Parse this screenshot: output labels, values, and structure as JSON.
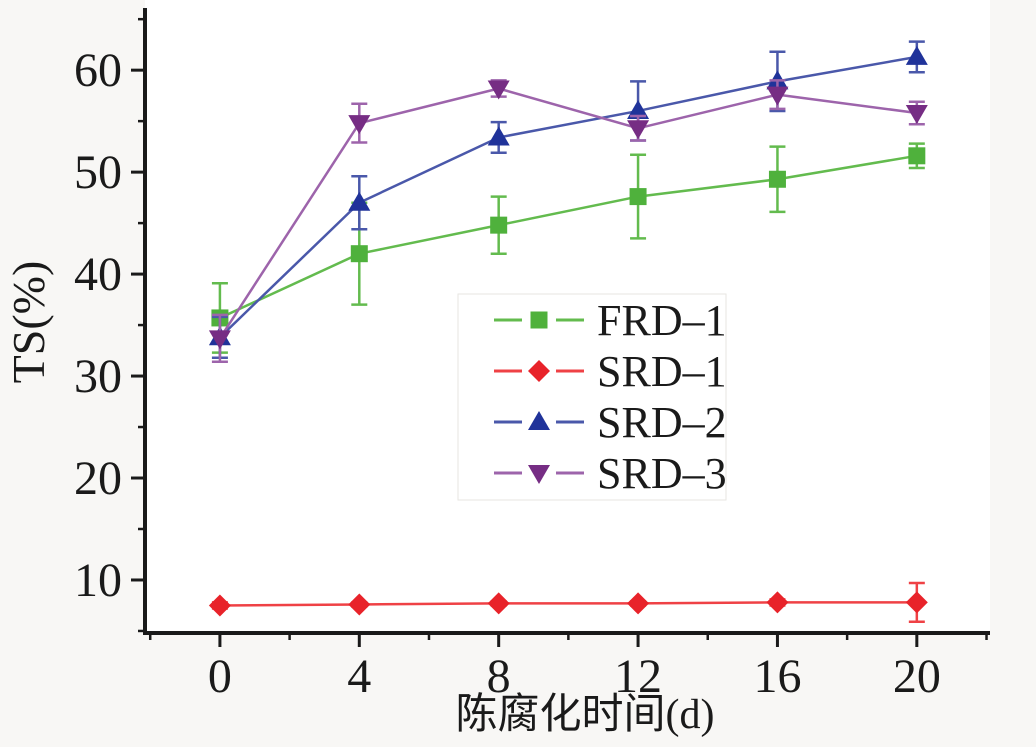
{
  "figure": {
    "background": "#f8f7f5",
    "plot_background": "#ffffff",
    "axis_color": "#1a1a1a"
  },
  "chart_data": {
    "type": "line",
    "title": "",
    "xlabel": "陈腐化时间(d)",
    "ylabel": "TS(%)",
    "grid": false,
    "legend_position": "center",
    "xlim": [
      -2.15,
      22.1
    ],
    "ylim": [
      4.8,
      65.9
    ],
    "x_major_ticks": [
      0,
      4,
      8,
      12,
      16,
      20
    ],
    "x_minor_ticks": [
      -2,
      2,
      6,
      10,
      14,
      18,
      22
    ],
    "y_major_ticks": [
      10,
      20,
      30,
      40,
      50,
      60
    ],
    "y_minor_ticks": [
      5,
      15,
      25,
      35,
      45,
      55,
      65
    ],
    "x": [
      0,
      4,
      8,
      12,
      16,
      20
    ],
    "series": [
      {
        "name": "FRD–1",
        "marker": "square",
        "line_color": "#63bb4e",
        "marker_color": "#4fb13c",
        "values": [
          35.7,
          42.0,
          44.8,
          47.6,
          49.3,
          51.6
        ],
        "errors": [
          3.4,
          5.0,
          2.8,
          4.1,
          3.2,
          1.2
        ]
      },
      {
        "name": "SRD–1",
        "marker": "diamond",
        "line_color": "#ef4145",
        "marker_color": "#e8232a",
        "values": [
          7.5,
          7.6,
          7.7,
          7.7,
          7.8,
          7.8
        ],
        "errors": [
          0.3,
          0.2,
          0.2,
          0.2,
          0.3,
          1.9
        ]
      },
      {
        "name": "SRD–2",
        "marker": "triangle-up",
        "line_color": "#4a58aa",
        "marker_color": "#20339a",
        "values": [
          33.8,
          47.0,
          53.4,
          56.0,
          58.9,
          61.3
        ],
        "errors": [
          2.0,
          2.6,
          1.5,
          2.9,
          2.9,
          1.5
        ]
      },
      {
        "name": "SRD–3",
        "marker": "triangle-down",
        "line_color": "#9d64ab",
        "marker_color": "#762d84",
        "values": [
          33.7,
          54.8,
          58.2,
          54.3,
          57.6,
          55.8
        ],
        "errors": [
          2.3,
          1.9,
          0.8,
          1.2,
          1.4,
          1.1
        ]
      }
    ]
  }
}
